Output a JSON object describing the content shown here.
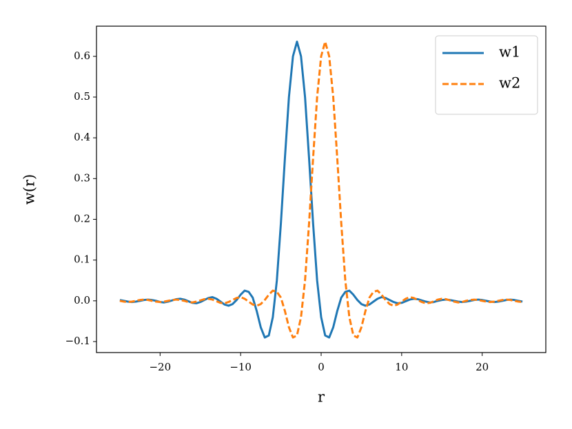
{
  "chart_data": {
    "type": "line",
    "x_label": "r",
    "y_label": "w(r)",
    "x": [
      -25,
      -24.5,
      -24,
      -23.5,
      -23,
      -22.5,
      -22,
      -21.5,
      -21,
      -20.5,
      -20,
      -19.5,
      -19,
      -18.5,
      -18,
      -17.5,
      -17,
      -16.5,
      -16,
      -15.5,
      -15,
      -14.5,
      -14,
      -13.5,
      -13,
      -12.5,
      -12,
      -11.5,
      -11,
      -10.5,
      -10,
      -9.5,
      -9,
      -8.5,
      -8,
      -7.5,
      -7,
      -6.5,
      -6,
      -5.5,
      -5,
      -4.5,
      -4,
      -3.5,
      -3,
      -2.5,
      -2,
      -1.5,
      -1,
      -0.5,
      0,
      0.5,
      1,
      1.5,
      2,
      2.5,
      3,
      3.5,
      4,
      4.5,
      5,
      5.5,
      6,
      6.5,
      7,
      7.5,
      8,
      8.5,
      9,
      9.5,
      10,
      10.5,
      11,
      11.5,
      12,
      12.5,
      13,
      13.5,
      14,
      14.5,
      15,
      15.5,
      16,
      16.5,
      17,
      17.5,
      18,
      18.5,
      19,
      19.5,
      20,
      20.5,
      21,
      21.5,
      22,
      22.5,
      23,
      23.5,
      24,
      24.5,
      25
    ],
    "series": [
      {
        "name": "w1",
        "color": "#1f77b4",
        "linestyle": "solid",
        "values": [
          0.002,
          0,
          -0.002,
          -0.003,
          -0.002,
          0,
          0.002,
          0.003,
          0.002,
          0,
          -0.003,
          -0.004,
          -0.002,
          0.001,
          0.004,
          0.005,
          0.003,
          -0.001,
          -0.005,
          -0.006,
          -0.003,
          0.002,
          0.007,
          0.009,
          0.005,
          -0.002,
          -0.009,
          -0.012,
          -0.008,
          0.002,
          0.015,
          0.025,
          0.022,
          0.008,
          -0.025,
          -0.065,
          -0.09,
          -0.085,
          -0.04,
          0.05,
          0.19,
          0.35,
          0.5,
          0.6,
          0.636,
          0.6,
          0.5,
          0.35,
          0.19,
          0.05,
          -0.04,
          -0.085,
          -0.09,
          -0.065,
          -0.025,
          0.008,
          0.022,
          0.025,
          0.015,
          0.002,
          -0.008,
          -0.012,
          -0.009,
          -0.002,
          0.005,
          0.009,
          0.007,
          0.002,
          -0.003,
          -0.006,
          -0.005,
          -0.001,
          0.003,
          0.005,
          0.004,
          0.001,
          -0.002,
          -0.004,
          -0.003,
          0,
          0.002,
          0.003,
          0.002,
          0,
          -0.002,
          -0.003,
          -0.002,
          0,
          0.002,
          0.003,
          0.002,
          0,
          -0.002,
          -0.003,
          -0.002,
          0,
          0.002,
          0.003,
          0.002,
          0,
          -0.002
        ]
      },
      {
        "name": "w2",
        "color": "#ff7f0e",
        "linestyle": "dashed",
        "values": [
          0,
          -0.002,
          -0.003,
          -0.002,
          0,
          0.002,
          0.003,
          0.002,
          0,
          -0.002,
          -0.003,
          -0.002,
          0,
          0.002,
          0.003,
          0.002,
          0,
          -0.003,
          -0.004,
          -0.002,
          0.001,
          0.004,
          0.005,
          0.003,
          -0.001,
          -0.005,
          -0.006,
          -0.003,
          0.002,
          0.007,
          0.009,
          0.005,
          -0.002,
          -0.009,
          -0.012,
          -0.008,
          0.002,
          0.015,
          0.025,
          0.022,
          0.008,
          -0.025,
          -0.065,
          -0.09,
          -0.085,
          -0.04,
          0.05,
          0.19,
          0.35,
          0.5,
          0.6,
          0.636,
          0.6,
          0.5,
          0.35,
          0.19,
          0.05,
          -0.04,
          -0.085,
          -0.09,
          -0.065,
          -0.025,
          0.008,
          0.022,
          0.025,
          0.015,
          0.002,
          -0.008,
          -0.012,
          -0.009,
          -0.002,
          0.005,
          0.009,
          0.007,
          0.002,
          -0.003,
          -0.006,
          -0.005,
          -0.001,
          0.003,
          0.005,
          0.004,
          0.001,
          -0.002,
          -0.004,
          -0.003,
          0,
          0.002,
          0.003,
          0.002,
          0,
          -0.002,
          -0.003,
          -0.002,
          0,
          0.002,
          0.003,
          0.002,
          0,
          -0.002,
          -0.003
        ]
      }
    ],
    "xlim": [
      -27.9,
      27.9
    ],
    "ylim": [
      -0.127,
      0.674
    ],
    "xticks": [
      {
        "value": -20,
        "label": "−20"
      },
      {
        "value": -10,
        "label": "−10"
      },
      0,
      10,
      20
    ],
    "yticks": [
      {
        "value": -0.1,
        "label": "−0.1"
      },
      {
        "value": 0,
        "label": "0.0"
      },
      0.1,
      0.2,
      0.3,
      0.4,
      0.5,
      0.6
    ],
    "grid": false,
    "legend": "upper right"
  }
}
